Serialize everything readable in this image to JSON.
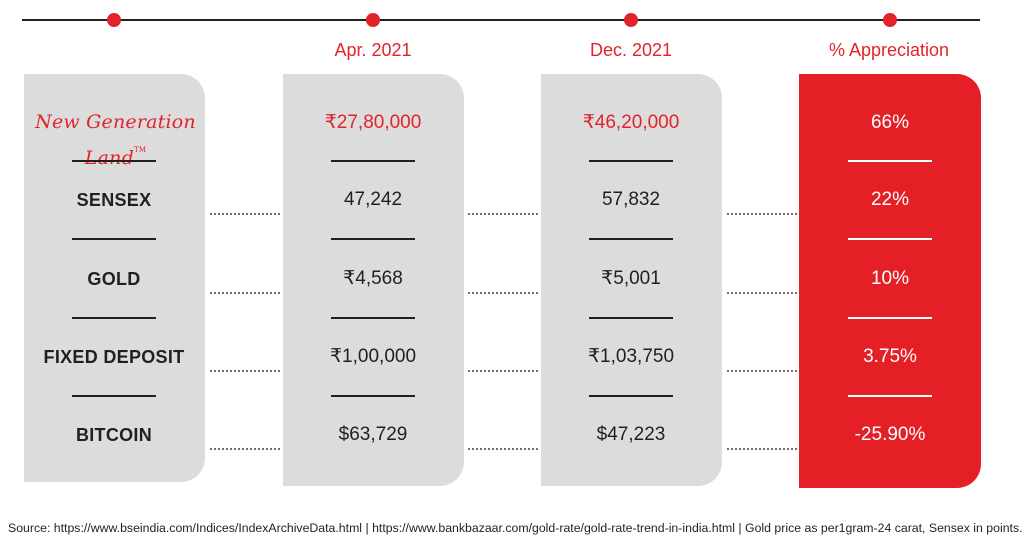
{
  "chart_data": {
    "type": "table",
    "columns": [
      "Apr. 2021",
      "Dec. 2021",
      "% Appreciation"
    ],
    "rows": [
      {
        "name": "New Generation Land",
        "tm": "TM",
        "apr_2021": "₹27,80,000",
        "dec_2021": "₹46,20,000",
        "appreciation": "66%"
      },
      {
        "name": "SENSEX",
        "apr_2021": "47,242",
        "dec_2021": "57,832",
        "appreciation": "22%"
      },
      {
        "name": "GOLD",
        "apr_2021": "₹4,568",
        "dec_2021": "₹5,001",
        "appreciation": "10%"
      },
      {
        "name": "FIXED DEPOSIT",
        "apr_2021": "₹1,00,000",
        "dec_2021": "₹1,03,750",
        "appreciation": "3.75%"
      },
      {
        "name": "BITCOIN",
        "apr_2021": "$63,729",
        "dec_2021": "$47,223",
        "appreciation": "-25.90%"
      }
    ],
    "source": "Source: https://www.bseindia.com/Indices/IndexArchiveData.html | https://www.bankbazaar.com/gold-rate/gold-rate-trend-in-india.html | Gold price as per1gram-24 carat, Sensex in points."
  },
  "colors": {
    "accent_red": "#e2232a",
    "panel_grey": "#dcdcdd",
    "text_dark": "#231f20"
  }
}
